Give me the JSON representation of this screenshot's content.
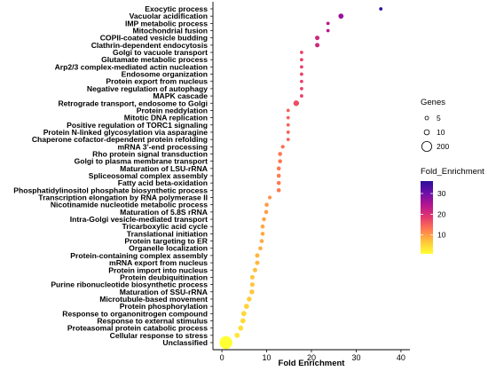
{
  "chart_data": {
    "type": "scatter",
    "xlabel": "Fold Enrichment",
    "ylabel": "",
    "xlim": [
      -2,
      42
    ],
    "xticks": [
      0,
      10,
      20,
      30,
      40
    ],
    "grid": false,
    "legend_position": "right",
    "size_legend": {
      "title": "Genes",
      "values": [
        5,
        10,
        200
      ],
      "labels": [
        "5",
        "10",
        "200"
      ]
    },
    "color_legend": {
      "title": "Fold_Enrichment",
      "ticks": [
        10,
        20,
        30
      ],
      "range": [
        0.9,
        36
      ],
      "colors": [
        "#ffff33",
        "#ffc63a",
        "#ff7a50",
        "#e53a6e",
        "#b5158f",
        "#6e0fa8",
        "#2a0f9a"
      ]
    },
    "points": [
      {
        "term": "Exocytic process",
        "x": 35.5,
        "genes": 5
      },
      {
        "term": "Vacuolar acidification",
        "x": 26.6,
        "genes": 10
      },
      {
        "term": "IMP metabolic process",
        "x": 23.7,
        "genes": 5
      },
      {
        "term": "Mitochondrial fusion",
        "x": 23.7,
        "genes": 5
      },
      {
        "term": "COPII-coated vesicle budding",
        "x": 21.3,
        "genes": 8
      },
      {
        "term": "Clathrin-dependent endocytosis",
        "x": 21.3,
        "genes": 8
      },
      {
        "term": "Golgi to vacuole transport",
        "x": 17.8,
        "genes": 5
      },
      {
        "term": "Glutamate metabolic process",
        "x": 17.8,
        "genes": 5
      },
      {
        "term": "Arp2/3 complex-mediated actin nucleation",
        "x": 17.8,
        "genes": 5
      },
      {
        "term": "Endosome organization",
        "x": 17.8,
        "genes": 5
      },
      {
        "term": "Protein export from nucleus",
        "x": 17.8,
        "genes": 5
      },
      {
        "term": "Negative regulation of autophagy",
        "x": 17.8,
        "genes": 5
      },
      {
        "term": "MAPK cascade",
        "x": 17.8,
        "genes": 5
      },
      {
        "term": "Retrograde transport, endosome to Golgi",
        "x": 16.6,
        "genes": 12
      },
      {
        "term": "Protein neddylation",
        "x": 14.8,
        "genes": 5
      },
      {
        "term": "Mitotic DNA replication",
        "x": 14.8,
        "genes": 5
      },
      {
        "term": "Positive regulation of TORC1 signaling",
        "x": 14.8,
        "genes": 5
      },
      {
        "term": "Protein N-linked glycosylation via asparagine",
        "x": 14.8,
        "genes": 5
      },
      {
        "term": "Chaperone cofactor-dependent protein refolding",
        "x": 14.8,
        "genes": 5
      },
      {
        "term": "mRNA 3'-end processing",
        "x": 13.6,
        "genes": 6
      },
      {
        "term": "Rho protein signal transduction",
        "x": 13.0,
        "genes": 7
      },
      {
        "term": "Golgi to plasma membrane transport",
        "x": 13.0,
        "genes": 7
      },
      {
        "term": "Maturation of LSU-rRNA",
        "x": 12.7,
        "genes": 7
      },
      {
        "term": "Spliceosomal complex assembly",
        "x": 12.7,
        "genes": 7
      },
      {
        "term": "Fatty acid beta-oxidation",
        "x": 12.7,
        "genes": 7
      },
      {
        "term": "Phosphatidylinositol phosphate biosynthetic process",
        "x": 12.7,
        "genes": 7
      },
      {
        "term": "Transcription elongation by RNA polymerase II",
        "x": 10.7,
        "genes": 6
      },
      {
        "term": "Nicotinamide nucleotide metabolic process",
        "x": 10.0,
        "genes": 7
      },
      {
        "term": "Maturation of 5.8S rRNA",
        "x": 9.9,
        "genes": 7
      },
      {
        "term": "Intra-Golgi vesicle-mediated transport",
        "x": 9.4,
        "genes": 7
      },
      {
        "term": "Tricarboxylic acid cycle",
        "x": 9.1,
        "genes": 7
      },
      {
        "term": "Translational initiation",
        "x": 9.1,
        "genes": 7
      },
      {
        "term": "Protein targeting to ER",
        "x": 8.9,
        "genes": 7
      },
      {
        "term": "Organelle localization",
        "x": 8.6,
        "genes": 7
      },
      {
        "term": "Protein-containing complex assembly",
        "x": 7.9,
        "genes": 8
      },
      {
        "term": "mRNA export from nucleus",
        "x": 7.9,
        "genes": 8
      },
      {
        "term": "Protein import into nucleus",
        "x": 7.4,
        "genes": 8
      },
      {
        "term": "Protein deubiquitination",
        "x": 6.8,
        "genes": 8
      },
      {
        "term": "Purine ribonucleotide biosynthetic process",
        "x": 6.8,
        "genes": 8
      },
      {
        "term": "Maturation of SSU-rRNA",
        "x": 6.7,
        "genes": 9
      },
      {
        "term": "Microtubule-based movement",
        "x": 6.1,
        "genes": 9
      },
      {
        "term": "Protein phosphorylation",
        "x": 5.5,
        "genes": 10
      },
      {
        "term": "Response to organonitrogen compound",
        "x": 4.9,
        "genes": 10
      },
      {
        "term": "Response to external stimulus",
        "x": 4.7,
        "genes": 10
      },
      {
        "term": "Proteasomal protein catabolic process",
        "x": 4.2,
        "genes": 10
      },
      {
        "term": "Cellular response to stress",
        "x": 3.4,
        "genes": 10
      },
      {
        "term": "Unclassified",
        "x": 0.9,
        "genes": 200
      }
    ]
  }
}
